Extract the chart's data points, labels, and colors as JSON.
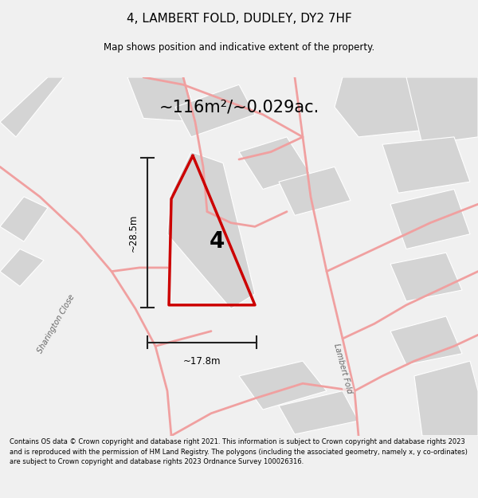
{
  "title": "4, LAMBERT FOLD, DUDLEY, DY2 7HF",
  "subtitle": "Map shows position and indicative extent of the property.",
  "area_label": "~116m²/~0.029ac.",
  "dim_width": "~17.8m",
  "dim_height": "~28.5m",
  "plot_number": "4",
  "footer": "Contains OS data © Crown copyright and database right 2021. This information is subject to Crown copyright and database rights 2023 and is reproduced with the permission of HM Land Registry. The polygons (including the associated geometry, namely x, y co-ordinates) are subject to Crown copyright and database rights 2023 Ordnance Survey 100026316.",
  "bg_color": "#f0f0f0",
  "map_bg": "#f0f0f0",
  "plot_color": "#cc0000",
  "road_color": "#f0a0a0",
  "building_color": "#d4d4d4",
  "dim_color": "#222222",
  "label_color": "#666666"
}
